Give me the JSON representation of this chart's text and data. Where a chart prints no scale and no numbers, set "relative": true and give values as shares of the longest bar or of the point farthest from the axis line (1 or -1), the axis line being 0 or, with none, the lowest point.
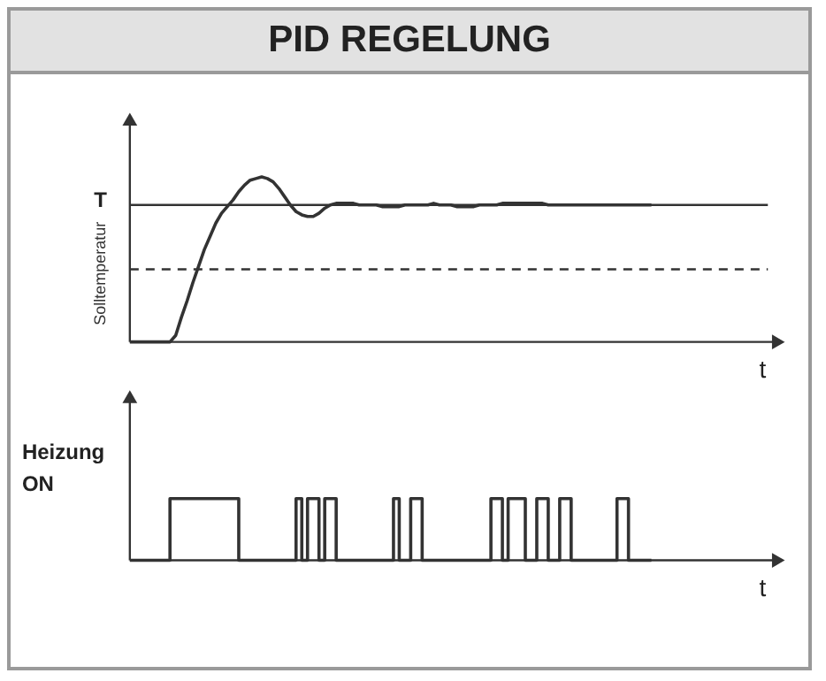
{
  "chart_data": [
    {
      "type": "line",
      "title": "PID REGELUNG",
      "xlabel": "t",
      "ylabel": "T",
      "relative": true,
      "color": "#333333",
      "categories": [
        null,
        null,
        null,
        null,
        null,
        null,
        null,
        null,
        null,
        null,
        null,
        null,
        null,
        null,
        null,
        null,
        null,
        null,
        null,
        null,
        null,
        null,
        null,
        null,
        null,
        null,
        null,
        null,
        null,
        null,
        null,
        null,
        null,
        null,
        null,
        null,
        null,
        null,
        null,
        null,
        null,
        null,
        null,
        null,
        null,
        null,
        null,
        null,
        null,
        null,
        null,
        null,
        null,
        null,
        null,
        null,
        null,
        null,
        null,
        null,
        null,
        null,
        null,
        null,
        null,
        null,
        null,
        null,
        null,
        null,
        null,
        null,
        null,
        null,
        null,
        null,
        null,
        null,
        null,
        null,
        null,
        null,
        null,
        null,
        null,
        null,
        null,
        null,
        null,
        null,
        null,
        null
      ],
      "values": [
        0,
        0,
        0,
        0,
        0,
        0,
        0,
        0,
        0.04,
        0.15,
        0.25,
        0.36,
        0.46,
        0.56,
        0.64,
        0.72,
        0.78,
        0.82,
        0.86,
        0.91,
        0.95,
        0.98,
        0.99,
        1,
        0.99,
        0.97,
        0.93,
        0.88,
        0.83,
        0.79,
        0.77,
        0.76,
        0.76,
        0.78,
        0.81,
        0.83,
        0.84,
        0.84,
        0.84,
        0.84,
        0.83,
        0.83,
        0.83,
        0.83,
        0.82,
        0.82,
        0.82,
        0.82,
        0.83,
        0.83,
        0.83,
        0.83,
        0.83,
        0.84,
        0.83,
        0.83,
        0.83,
        0.82,
        0.82,
        0.82,
        0.82,
        0.83,
        0.83,
        0.83,
        0.83,
        0.84,
        0.84,
        0.84,
        0.84,
        0.84,
        0.84,
        0.84,
        0.84,
        0.83,
        0.83,
        0.83,
        0.83,
        0.83,
        0.83,
        0.83,
        0.83,
        0.83,
        0.83,
        0.83,
        0.83,
        0.83,
        0.83,
        0.83,
        0.83,
        0.83,
        0.83,
        0.83
      ],
      "ref_lines": [
        {
          "axis": "y",
          "value": 0.83,
          "label": "Solltemperatur",
          "line_style": "solid",
          "color": "#333333"
        },
        {
          "axis": "y",
          "value": 0.44,
          "line_style": "dashed",
          "color": "#333333"
        }
      ]
    },
    {
      "type": "step",
      "xlabel": "t",
      "ylabel": "Heizung ON",
      "relative": true,
      "color": "#333333",
      "categories": [
        null,
        null,
        null,
        null,
        null,
        null,
        null,
        null,
        null,
        null,
        null,
        null,
        null,
        null,
        null,
        null,
        null,
        null,
        null,
        null,
        null,
        null,
        null,
        null,
        null,
        null,
        null,
        null,
        null,
        null,
        null,
        null,
        null,
        null,
        null,
        null,
        null,
        null,
        null,
        null,
        null,
        null,
        null,
        null,
        null,
        null,
        null,
        null,
        null,
        null,
        null,
        null,
        null,
        null,
        null,
        null,
        null,
        null,
        null,
        null,
        null,
        null,
        null,
        null,
        null,
        null,
        null,
        null,
        null,
        null,
        null,
        null,
        null,
        null,
        null,
        null,
        null,
        null,
        null,
        null,
        null,
        null,
        null,
        null,
        null,
        null,
        null,
        null,
        null,
        null,
        null,
        null
      ],
      "values": [
        0,
        0,
        0,
        0,
        0,
        0,
        0,
        1,
        1,
        1,
        1,
        1,
        1,
        1,
        1,
        1,
        1,
        1,
        1,
        0,
        0,
        0,
        0,
        0,
        0,
        0,
        0,
        0,
        0,
        1,
        0,
        1,
        1,
        0,
        1,
        1,
        0,
        0,
        0,
        0,
        0,
        0,
        0,
        0,
        0,
        0,
        1,
        0,
        0,
        1,
        1,
        0,
        0,
        0,
        0,
        0,
        0,
        0,
        0,
        0,
        0,
        0,
        0,
        1,
        1,
        0,
        1,
        1,
        1,
        0,
        0,
        1,
        1,
        0,
        0,
        1,
        1,
        0,
        0,
        0,
        0,
        0,
        0,
        0,
        0,
        1,
        1,
        0,
        0,
        0,
        0,
        0
      ]
    }
  ]
}
